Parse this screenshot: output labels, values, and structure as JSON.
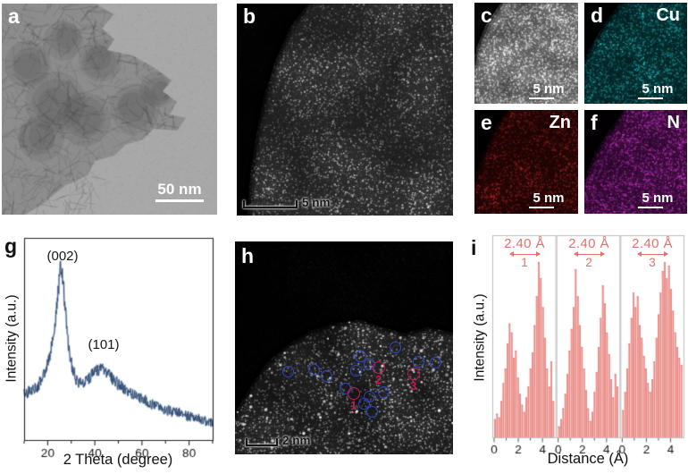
{
  "figure": {
    "panels": {
      "a": {
        "label": "a",
        "scalebar": "50 nm"
      },
      "b": {
        "label": "b",
        "scalebar": "5 nm"
      },
      "c": {
        "label": "c",
        "scalebar": "5 nm"
      },
      "d": {
        "label": "d",
        "element": "Cu",
        "scalebar": "5 nm",
        "base_color": "#031417",
        "speckle_color": "#20c4c4"
      },
      "e": {
        "label": "e",
        "element": "Zn",
        "scalebar": "5 nm",
        "base_color": "#140303",
        "speckle_color": "#dd3232"
      },
      "f": {
        "label": "f",
        "element": "N",
        "scalebar": "5 nm",
        "base_color": "#1a041a",
        "speckle_color": "#d93ad9"
      },
      "g": {
        "label": "g"
      },
      "h": {
        "label": "h",
        "scalebar": "2 nm",
        "markers": {
          "single_color": "#2b46c8",
          "pair_color": "#c9175a",
          "single": [
            [
              58,
              144
            ],
            [
              87,
              142
            ],
            [
              101,
              149
            ],
            [
              139,
              127
            ],
            [
              134,
              143
            ],
            [
              149,
              136
            ],
            [
              122,
              163
            ],
            [
              165,
              167
            ],
            [
              149,
              172
            ],
            [
              143,
              180
            ],
            [
              152,
              189
            ],
            [
              178,
              117
            ],
            [
              204,
              133
            ],
            [
              223,
              134
            ]
          ],
          "pairs": [
            {
              "x": 132,
              "y": 169,
              "label": "1"
            },
            {
              "x": 160,
              "y": 140,
              "label": "2"
            },
            {
              "x": 199,
              "y": 147,
              "label": "3"
            }
          ]
        }
      },
      "i": {
        "label": "i"
      }
    }
  },
  "chart_data": [
    {
      "id": "g",
      "type": "line",
      "xlabel": "2 Theta (degree)",
      "ylabel": "Intensity (a.u.)",
      "xlim": [
        10,
        90
      ],
      "x_ticks": [
        20,
        40,
        60,
        80
      ],
      "x_minor_ticks": [
        10,
        30,
        50,
        70,
        90
      ],
      "grid": false,
      "line_color": "#2c4b72",
      "halo_color": "rgba(98,126,163,0.38)",
      "noise_amplitude": 0.03,
      "annotations": [
        {
          "text": "(002)",
          "x": 25.5
        },
        {
          "text": "(101)",
          "x": 43
        }
      ],
      "profile": [
        [
          10,
          0.26
        ],
        [
          13,
          0.27
        ],
        [
          16,
          0.3
        ],
        [
          19,
          0.38
        ],
        [
          21,
          0.47
        ],
        [
          23,
          0.63
        ],
        [
          24.5,
          0.82
        ],
        [
          25.5,
          0.97
        ],
        [
          26.5,
          0.88
        ],
        [
          27.5,
          0.72
        ],
        [
          29,
          0.5
        ],
        [
          30.5,
          0.4
        ],
        [
          32,
          0.34
        ],
        [
          34,
          0.31
        ],
        [
          36,
          0.33
        ],
        [
          38,
          0.35
        ],
        [
          40,
          0.375
        ],
        [
          42,
          0.39
        ],
        [
          43.5,
          0.4
        ],
        [
          45,
          0.375
        ],
        [
          47,
          0.35
        ],
        [
          50,
          0.31
        ],
        [
          53,
          0.28
        ],
        [
          56,
          0.25
        ],
        [
          60,
          0.225
        ],
        [
          64,
          0.2
        ],
        [
          68,
          0.18
        ],
        [
          72,
          0.163
        ],
        [
          76,
          0.148
        ],
        [
          80,
          0.133
        ],
        [
          84,
          0.118
        ],
        [
          88,
          0.103
        ],
        [
          90,
          0.097
        ]
      ]
    },
    {
      "id": "i",
      "type": "bar",
      "xlabel": "Distance (Å)",
      "ylabel": "Intensity (a.u.)",
      "xlim": [
        0,
        5
      ],
      "x_ticks": [
        0,
        2,
        4
      ],
      "x_minor_ticks": [
        1,
        3
      ],
      "bar_fill": "#f09591",
      "bar_edge": "#dd7470",
      "accent": "#e4706e",
      "panels": [
        {
          "number": "1",
          "spacing_label": "2.40 Å",
          "values": [
            0.1,
            0.13,
            0.11,
            0.2,
            0.3,
            0.38,
            0.52,
            0.63,
            0.58,
            0.44,
            0.48,
            0.33,
            0.24,
            0.18,
            0.14,
            0.22,
            0.28,
            0.38,
            0.47,
            0.62,
            0.78,
            0.97,
            0.88,
            0.72,
            0.55,
            0.38,
            0.28,
            0.42,
            0.2
          ]
        },
        {
          "number": "2",
          "spacing_label": "2.40 Å",
          "values": [
            0.06,
            0.1,
            0.16,
            0.24,
            0.35,
            0.48,
            0.6,
            0.72,
            0.93,
            0.78,
            0.62,
            0.5,
            0.38,
            0.26,
            0.16,
            0.09,
            0.14,
            0.25,
            0.36,
            0.5,
            0.66,
            0.84,
            0.74,
            0.58,
            0.46,
            0.32,
            0.22,
            0.35,
            0.28
          ]
        },
        {
          "number": "3",
          "spacing_label": "2.40 Å",
          "values": [
            0.15,
            0.25,
            0.38,
            0.52,
            0.66,
            0.8,
            0.72,
            0.78,
            0.62,
            0.55,
            0.45,
            0.38,
            0.3,
            0.25,
            0.32,
            0.42,
            0.55,
            0.68,
            0.8,
            0.92,
            0.97,
            0.88,
            0.95,
            0.82,
            0.7,
            0.58,
            0.5,
            0.44,
            0.4
          ]
        }
      ]
    }
  ]
}
